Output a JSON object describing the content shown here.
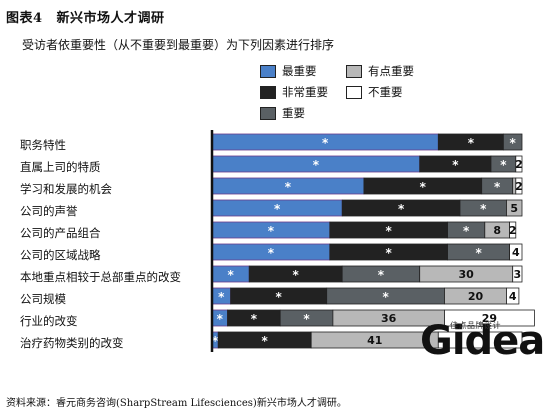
{
  "figure": {
    "number": "图表4",
    "title": "新兴市场人才调研",
    "question": "受访者依重要性（从不重要到最重要）为下列因素进行排序"
  },
  "source": "资料来源：睿元商务咨询(SharpStream  Lifesciences)新兴市场人才调研。",
  "logo": {
    "text": "Gidea",
    "subtext": "佳点品牌设计"
  },
  "colors": {
    "most": "#4a80c8",
    "very": "#222222",
    "some": "#b8b8b8",
    "important": "#5a6064",
    "not": "#ffffff",
    "outline": "#6a3c8c"
  },
  "chart_data": {
    "type": "bar",
    "orientation": "horizontal",
    "stacked": true,
    "legend": [
      {
        "key": "most",
        "label": "最重要"
      },
      {
        "key": "some",
        "label": "有点重要"
      },
      {
        "key": "very",
        "label": "非常重要"
      },
      {
        "key": "not",
        "label": "不重要"
      },
      {
        "key": "important",
        "label": "重要"
      }
    ],
    "categories": [
      "职务特性",
      "直属上司的特质",
      "学习和发展的机会",
      "公司的声誉",
      "公司的产品组合",
      "公司的区域战略",
      "本地重点相较于总部重点的改变",
      "公司规模",
      "行业的改变",
      "治疗药物类别的改变"
    ],
    "series": [
      {
        "key": "most",
        "name": "最重要",
        "values": [
          73,
          67,
          49,
          42,
          38,
          38,
          12,
          6,
          5,
          2
        ]
      },
      {
        "key": "very",
        "name": "非常重要",
        "values": [
          21,
          23,
          38,
          38,
          38,
          38,
          30,
          31,
          17,
          30
        ]
      },
      {
        "key": "important",
        "name": "重要",
        "values": [
          6,
          8,
          10,
          15,
          12,
          20,
          25,
          38,
          17,
          0
        ]
      },
      {
        "key": "some",
        "name": "有点重要",
        "values": [
          0,
          0,
          1,
          5,
          8,
          0,
          30,
          20,
          36,
          41
        ]
      },
      {
        "key": "not",
        "name": "不重要",
        "values": [
          0,
          2,
          2,
          0,
          2,
          4,
          3,
          4,
          29,
          27
        ]
      }
    ],
    "value_labels": [
      [
        "*",
        "*",
        "*",
        "",
        ""
      ],
      [
        "*",
        "*",
        "*",
        "",
        "2"
      ],
      [
        "*",
        "*",
        "*",
        "",
        "2"
      ],
      [
        "*",
        "*",
        "*",
        "5",
        ""
      ],
      [
        "*",
        "*",
        "*",
        "8",
        "2"
      ],
      [
        "*",
        "*",
        "*",
        "",
        "4"
      ],
      [
        "*",
        "*",
        "*",
        "30",
        "3"
      ],
      [
        "*",
        "*",
        "*",
        "20",
        "4"
      ],
      [
        "*",
        "*",
        "*",
        "36",
        "29"
      ],
      [
        "*",
        "*",
        "",
        "41",
        ""
      ]
    ],
    "xlim": [
      0,
      100
    ]
  }
}
